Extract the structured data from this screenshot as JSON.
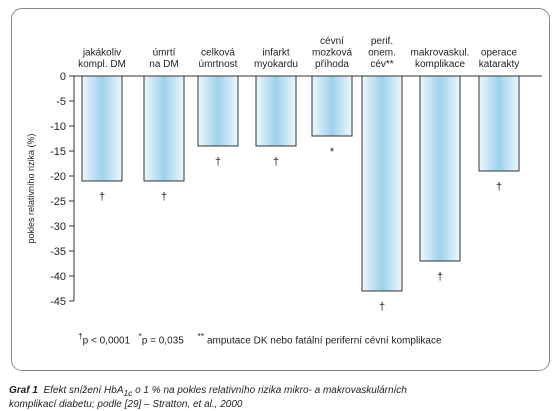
{
  "chart_data": {
    "type": "bar",
    "categories": [
      [
        "jakákoliv",
        "kompl. DM"
      ],
      [
        "úmrtí",
        "na DM"
      ],
      [
        "celková",
        "úmrtnost"
      ],
      [
        "infarkt",
        "myokardu"
      ],
      [
        "cévní",
        "mozková",
        "příhoda"
      ],
      [
        "perif.",
        "onem.",
        "cév**"
      ],
      [
        "makrovaskul.",
        "komplikace"
      ],
      [
        "operace",
        "katarakty"
      ]
    ],
    "values": [
      -21,
      -21,
      -14,
      -14,
      -12,
      -43,
      -37,
      -19
    ],
    "significance": [
      "†",
      "†",
      "†",
      "†",
      "*",
      "†",
      "†",
      "†"
    ],
    "ylabel": "pokles relativního rizika (%)",
    "ylim": [
      -45,
      0
    ],
    "yticks": [
      0,
      -5,
      -10,
      -15,
      -20,
      -25,
      -30,
      -35,
      -40,
      -45
    ],
    "bar_color_light": "#eef7fc",
    "bar_color_dark": "#9fd2ec",
    "grid": false
  },
  "footnote": {
    "dagger_text": "p  <  0,0001",
    "asterisk_text": "p = 0,035",
    "double_asterisk_text": "amputace DK nebo fatální periferní cévní komplikace",
    "dagger_symbol": "†",
    "asterisk_symbol": "*",
    "double_asterisk_symbol": "**"
  },
  "caption": {
    "label": "Graf 1",
    "text_before_sub": "Efekt snížení HbA",
    "subscript": "1c",
    "text_after_sub": " o 1 % na pokles relativního rizika mikro- a makrovaskulárních",
    "line2": "komplikací diabetu; podle [29] – Stratton, et al., 2000"
  }
}
